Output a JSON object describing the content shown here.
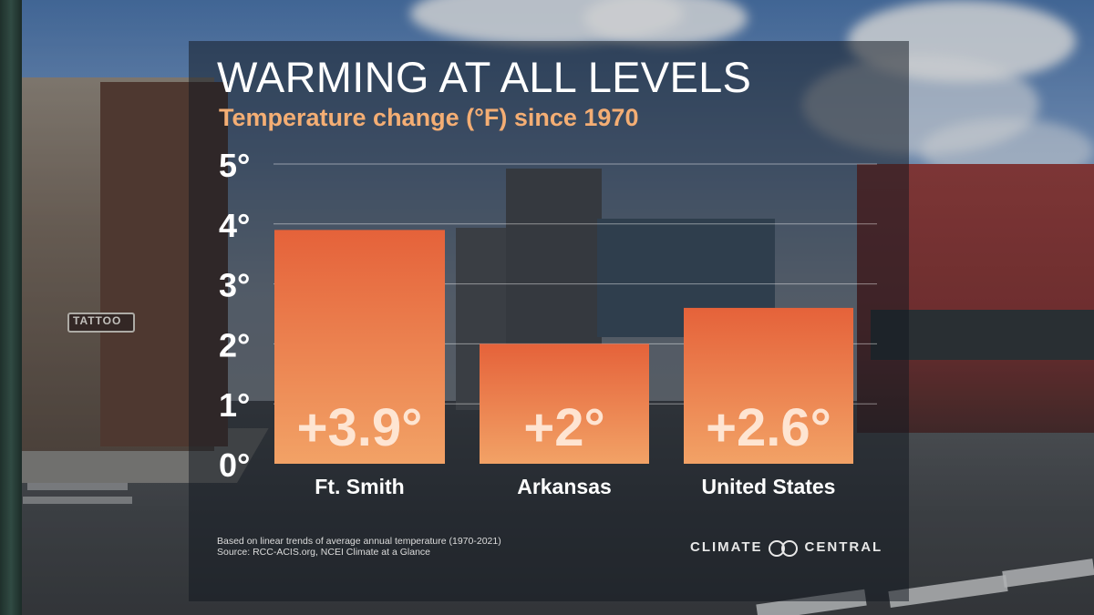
{
  "header": {
    "title": "WARMING AT ALL LEVELS",
    "subtitle": "Temperature change (°F) since 1970"
  },
  "chart_data": {
    "type": "bar",
    "title": "WARMING AT ALL LEVELS",
    "subtitle": "Temperature change (°F) since 1970",
    "categories": [
      "Ft. Smith",
      "Arkansas",
      "United States"
    ],
    "values": [
      3.9,
      2,
      2.6
    ],
    "data_labels": [
      "+3.9°",
      "+2°",
      "+2.6°"
    ],
    "y_ticks": [
      0,
      1,
      2,
      3,
      4,
      5
    ],
    "y_tick_labels": [
      "0°",
      "1°",
      "2°",
      "3°",
      "4°",
      "5°"
    ],
    "ylim": [
      0,
      5
    ],
    "grid": true,
    "bar_color_top": "#e5623a",
    "bar_color_bottom": "#f2a266"
  },
  "footnote": {
    "line1": "Based on linear trends of average annual temperature (1970-2021)",
    "line2": "Source: RCC-ACIS.org, NCEI Climate at a Glance"
  },
  "brand": {
    "left": "CLIMATE",
    "right": "CENTRAL",
    "icon": "climate-central-logo-icon"
  },
  "background": {
    "sign_text": "TATTOO"
  }
}
